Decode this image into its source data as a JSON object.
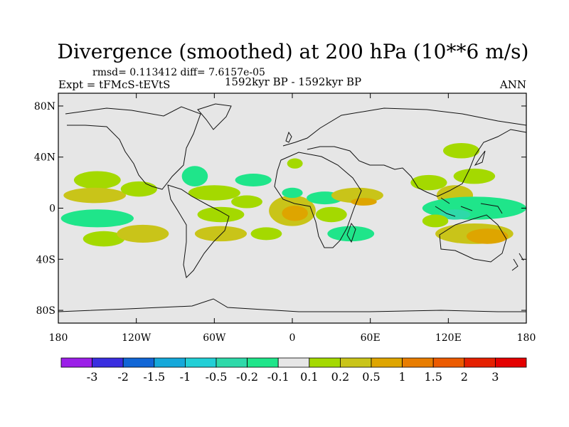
{
  "chart_data": {
    "type": "heatmap",
    "title": "Divergence (smoothed) at 200 hPa (10**6 m/s)",
    "stats": "rmsd= 0.113412  diff= 7.6157e-05",
    "left_label": "Expt = tFMcS-tEVtS",
    "center_label": "1592kyr BP - 1592kyr BP",
    "right_label": "ANN",
    "x_ticks": [
      "180",
      "120W",
      "60W",
      "0",
      "60E",
      "120E",
      "180"
    ],
    "x_tick_values": [
      -180,
      -120,
      -60,
      0,
      60,
      120,
      180
    ],
    "y_ticks": [
      "80N",
      "40N",
      "0",
      "40S",
      "80S"
    ],
    "y_tick_values": [
      80,
      40,
      0,
      -40,
      -80
    ],
    "xlim": [
      -180,
      180
    ],
    "ylim": [
      -90,
      90
    ],
    "colorbar": {
      "labels": [
        "-3",
        "-2",
        "-1.5",
        "-1",
        "-0.5",
        "-0.2",
        "-0.1",
        "0.1",
        "0.2",
        "0.5",
        "1",
        "1.5",
        "2",
        "3"
      ],
      "colors": [
        "#9b1fe8",
        "#3a2ee0",
        "#1166d6",
        "#15a8da",
        "#22cfd6",
        "#2ed9a9",
        "#1fe58a",
        "#e6e6e6",
        "#a4d900",
        "#c9c419",
        "#dea500",
        "#e87d00",
        "#ec5b00",
        "#e52000",
        "#e40000"
      ]
    },
    "regions": [
      {
        "lon": -150,
        "lat": 22,
        "rx": 18,
        "ry": 7,
        "level": "0.1"
      },
      {
        "lon": -152,
        "lat": 10,
        "rx": 24,
        "ry": 6,
        "level": "0.2"
      },
      {
        "lon": -118,
        "lat": 15,
        "rx": 14,
        "ry": 6,
        "level": "0.1"
      },
      {
        "lon": -150,
        "lat": -8,
        "rx": 28,
        "ry": 7,
        "level": "-0.1"
      },
      {
        "lon": -145,
        "lat": -24,
        "rx": 16,
        "ry": 6,
        "level": "0.1"
      },
      {
        "lon": -115,
        "lat": -20,
        "rx": 20,
        "ry": 7,
        "level": "0.2"
      },
      {
        "lon": -75,
        "lat": 25,
        "rx": 10,
        "ry": 8,
        "level": "-0.1"
      },
      {
        "lon": -30,
        "lat": 22,
        "rx": 14,
        "ry": 5,
        "level": "-0.1"
      },
      {
        "lon": -60,
        "lat": 12,
        "rx": 20,
        "ry": 6,
        "level": "0.1"
      },
      {
        "lon": -35,
        "lat": 5,
        "rx": 12,
        "ry": 5,
        "level": "0.1"
      },
      {
        "lon": -55,
        "lat": -5,
        "rx": 18,
        "ry": 6,
        "level": "0.1"
      },
      {
        "lon": -55,
        "lat": -20,
        "rx": 20,
        "ry": 6,
        "level": "0.2"
      },
      {
        "lon": -20,
        "lat": -20,
        "rx": 12,
        "ry": 5,
        "level": "0.1"
      },
      {
        "lon": 0,
        "lat": -2,
        "rx": 18,
        "ry": 12,
        "level": "0.2"
      },
      {
        "lon": 2,
        "lat": -4,
        "rx": 10,
        "ry": 6,
        "level": "0.5"
      },
      {
        "lon": 0,
        "lat": 12,
        "rx": 8,
        "ry": 4,
        "level": "-0.1"
      },
      {
        "lon": 2,
        "lat": 35,
        "rx": 6,
        "ry": 4,
        "level": "0.1"
      },
      {
        "lon": 25,
        "lat": 8,
        "rx": 14,
        "ry": 5,
        "level": "-0.1"
      },
      {
        "lon": 30,
        "lat": -5,
        "rx": 12,
        "ry": 6,
        "level": "0.1"
      },
      {
        "lon": 45,
        "lat": -20,
        "rx": 18,
        "ry": 6,
        "level": "-0.1"
      },
      {
        "lon": 50,
        "lat": 10,
        "rx": 20,
        "ry": 6,
        "level": "0.2"
      },
      {
        "lon": 55,
        "lat": 5,
        "rx": 10,
        "ry": 3,
        "level": "0.5"
      },
      {
        "lon": 130,
        "lat": 45,
        "rx": 14,
        "ry": 6,
        "level": "0.1"
      },
      {
        "lon": 105,
        "lat": 20,
        "rx": 14,
        "ry": 6,
        "level": "0.1"
      },
      {
        "lon": 125,
        "lat": 10,
        "rx": 14,
        "ry": 8,
        "level": "0.2"
      },
      {
        "lon": 140,
        "lat": 25,
        "rx": 16,
        "ry": 6,
        "level": "0.1"
      },
      {
        "lon": 140,
        "lat": 0,
        "rx": 40,
        "ry": 9,
        "level": "-0.1"
      },
      {
        "lon": 125,
        "lat": -5,
        "rx": 12,
        "ry": 4,
        "level": "-0.2"
      },
      {
        "lon": 140,
        "lat": -20,
        "rx": 30,
        "ry": 8,
        "level": "0.2"
      },
      {
        "lon": 150,
        "lat": -22,
        "rx": 16,
        "ry": 6,
        "level": "0.5"
      },
      {
        "lon": 110,
        "lat": -10,
        "rx": 10,
        "ry": 5,
        "level": "0.1"
      }
    ]
  }
}
